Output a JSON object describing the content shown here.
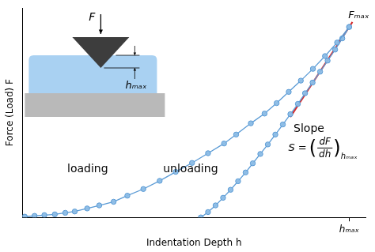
{
  "chart_data": {
    "type": "scatter",
    "x_label": "Indentation Depth h",
    "y_label": "Force (Load) F",
    "xlim": [
      0,
      1.05
    ],
    "ylim": [
      0,
      1.1
    ],
    "xticks": [
      {
        "value": 1,
        "label": "hₘₐₓ"
      }
    ],
    "yticks": [],
    "tick_labels": "x",
    "grid": false,
    "series": [
      {
        "name": "loading",
        "color": "#5b9bd5",
        "marker": "circle",
        "line_style": "solid",
        "x": [
          0.007,
          0.037,
          0.067,
          0.099,
          0.131,
          0.16,
          0.198,
          0.235,
          0.279,
          0.321,
          0.37,
          0.42,
          0.469,
          0.519,
          0.568,
          0.617,
          0.654,
          0.699,
          0.741,
          0.778,
          0.815,
          0.852,
          0.889,
          0.926,
          0.963,
          1.0
        ],
        "values": [
          0.004,
          0.008,
          0.012,
          0.016,
          0.024,
          0.031,
          0.047,
          0.063,
          0.082,
          0.114,
          0.149,
          0.192,
          0.239,
          0.286,
          0.337,
          0.388,
          0.435,
          0.494,
          0.545,
          0.6,
          0.659,
          0.718,
          0.78,
          0.847,
          0.918,
          1.0
        ]
      },
      {
        "name": "unloading",
        "color": "#5b9bd5",
        "marker": "circle",
        "line_style": "solid",
        "x": [
          1.0,
          0.979,
          0.957,
          0.934,
          0.911,
          0.888,
          0.865,
          0.843,
          0.82,
          0.797,
          0.774,
          0.751,
          0.728,
          0.705,
          0.683,
          0.66,
          0.637,
          0.614,
          0.591,
          0.568,
          0.546
        ],
        "values": [
          1.0,
          0.94,
          0.881,
          0.823,
          0.765,
          0.708,
          0.652,
          0.596,
          0.542,
          0.488,
          0.435,
          0.383,
          0.333,
          0.284,
          0.236,
          0.19,
          0.145,
          0.103,
          0.063,
          0.028,
          0.0
        ]
      },
      {
        "name": "Slope",
        "color": "#d62728",
        "marker": "none",
        "line_style": "solid",
        "x": [
          0.82,
          1.01
        ],
        "values": [
          0.527,
          1.026
        ]
      }
    ],
    "annotations": {
      "peak_label": "Fₘₐₓ",
      "formula": {
        "lhs": "S =",
        "numerator": "dF",
        "denominator": "dh",
        "subscript": "hₘₐₓ"
      },
      "inset": {
        "force": "F",
        "depth": "hₘₐₓ"
      }
    }
  }
}
